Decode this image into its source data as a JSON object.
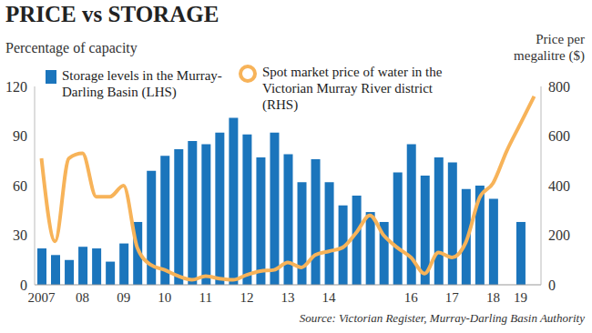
{
  "chart_data": {
    "type": "bar",
    "title": "PRICE vs STORAGE",
    "y_label": "Percentage of capacity",
    "y2_label": "Price per megalitre ($)",
    "source": "Source: Victorian Register, Murray-Darling Basin Authority",
    "categories": [
      "2007",
      null,
      null,
      "08",
      null,
      null,
      "09",
      null,
      null,
      "10",
      null,
      null,
      "11",
      null,
      null,
      "12",
      null,
      null,
      "13",
      null,
      null,
      "14",
      null,
      null,
      null,
      null,
      null,
      "16",
      null,
      null,
      "17",
      null,
      null,
      "18",
      null,
      "19",
      null
    ],
    "series": [
      {
        "name": "Storage levels in the Murray-Darling Basin (LHS)",
        "type": "bar",
        "color": "#1b75bc",
        "values": [
          22,
          18,
          15,
          23,
          22,
          14,
          25,
          38,
          69,
          78,
          82,
          87,
          85,
          92,
          101,
          91,
          77,
          92,
          79,
          62,
          76,
          62,
          48,
          54,
          44,
          38,
          68,
          85,
          66,
          77,
          74,
          58,
          60,
          52,
          null,
          38,
          null
        ]
      },
      {
        "name": "Spot market price of water in the Victorian Murray River district (RHS)",
        "type": "line",
        "color": "#f7b359",
        "axis": "y2",
        "values": [
          510,
          175,
          510,
          530,
          355,
          355,
          400,
          150,
          80,
          60,
          35,
          20,
          35,
          25,
          20,
          40,
          55,
          60,
          90,
          70,
          120,
          135,
          150,
          210,
          280,
          200,
          150,
          110,
          45,
          130,
          110,
          170,
          350,
          410,
          540,
          650,
          760
        ]
      }
    ],
    "ylim": [
      0,
      120
    ],
    "yticks": [
      0,
      30,
      60,
      90,
      120
    ],
    "y2lim": [
      0,
      800
    ],
    "y2ticks": [
      0,
      200,
      400,
      600,
      800
    ],
    "grid": false,
    "legend": "upper left"
  }
}
